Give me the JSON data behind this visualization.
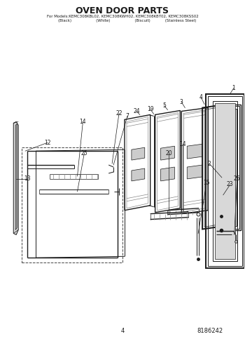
{
  "title": "OVEN DOOR PARTS",
  "subtitle_line1": "For Models:KEMC308KBL02, KEMC308KWH02, KEMC308KBT02, KEMC308KSS02",
  "subtitle_line2": "        (Black)                    (White)                    (Biscuit)            (Stainless Steel)",
  "page_num": "4",
  "part_num": "8186242",
  "bg_color": "#ffffff",
  "lc": "#1a1a1a"
}
